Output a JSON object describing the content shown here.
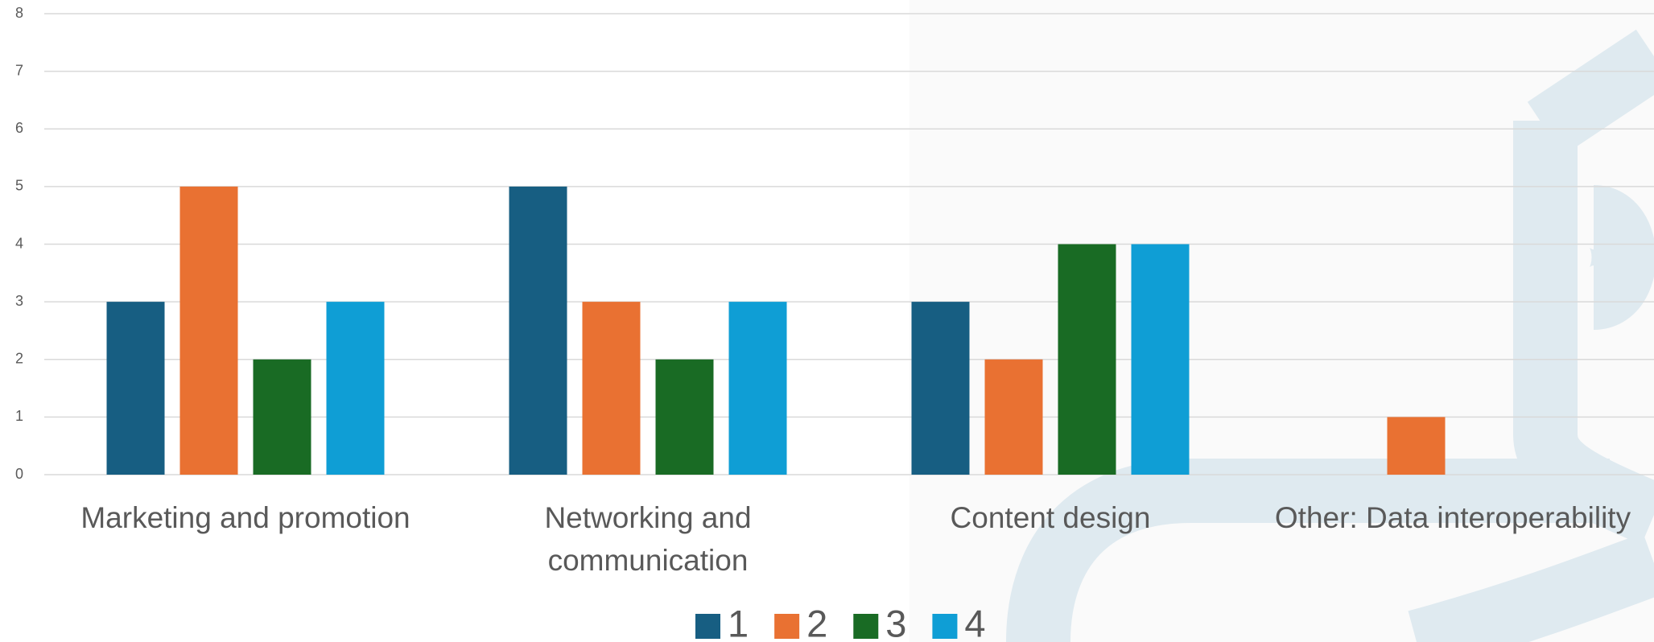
{
  "chart_data": {
    "type": "bar",
    "categories": [
      "Marketing and promotion",
      "Networking and communication",
      "Content design",
      "Other: Data interoperability"
    ],
    "series": [
      {
        "name": "1",
        "color": "#175e82",
        "values": [
          3,
          5,
          3,
          0
        ]
      },
      {
        "name": "2",
        "color": "#e97132",
        "values": [
          5,
          3,
          2,
          1
        ]
      },
      {
        "name": "3",
        "color": "#196b24",
        "values": [
          2,
          2,
          4,
          0
        ]
      },
      {
        "name": "4",
        "color": "#0f9ed5",
        "values": [
          3,
          3,
          4,
          0
        ]
      }
    ],
    "ylim": [
      0,
      8
    ],
    "yticks": [
      0,
      1,
      2,
      3,
      4,
      5,
      6,
      7,
      8
    ],
    "grid": true,
    "legend": "bottom"
  }
}
